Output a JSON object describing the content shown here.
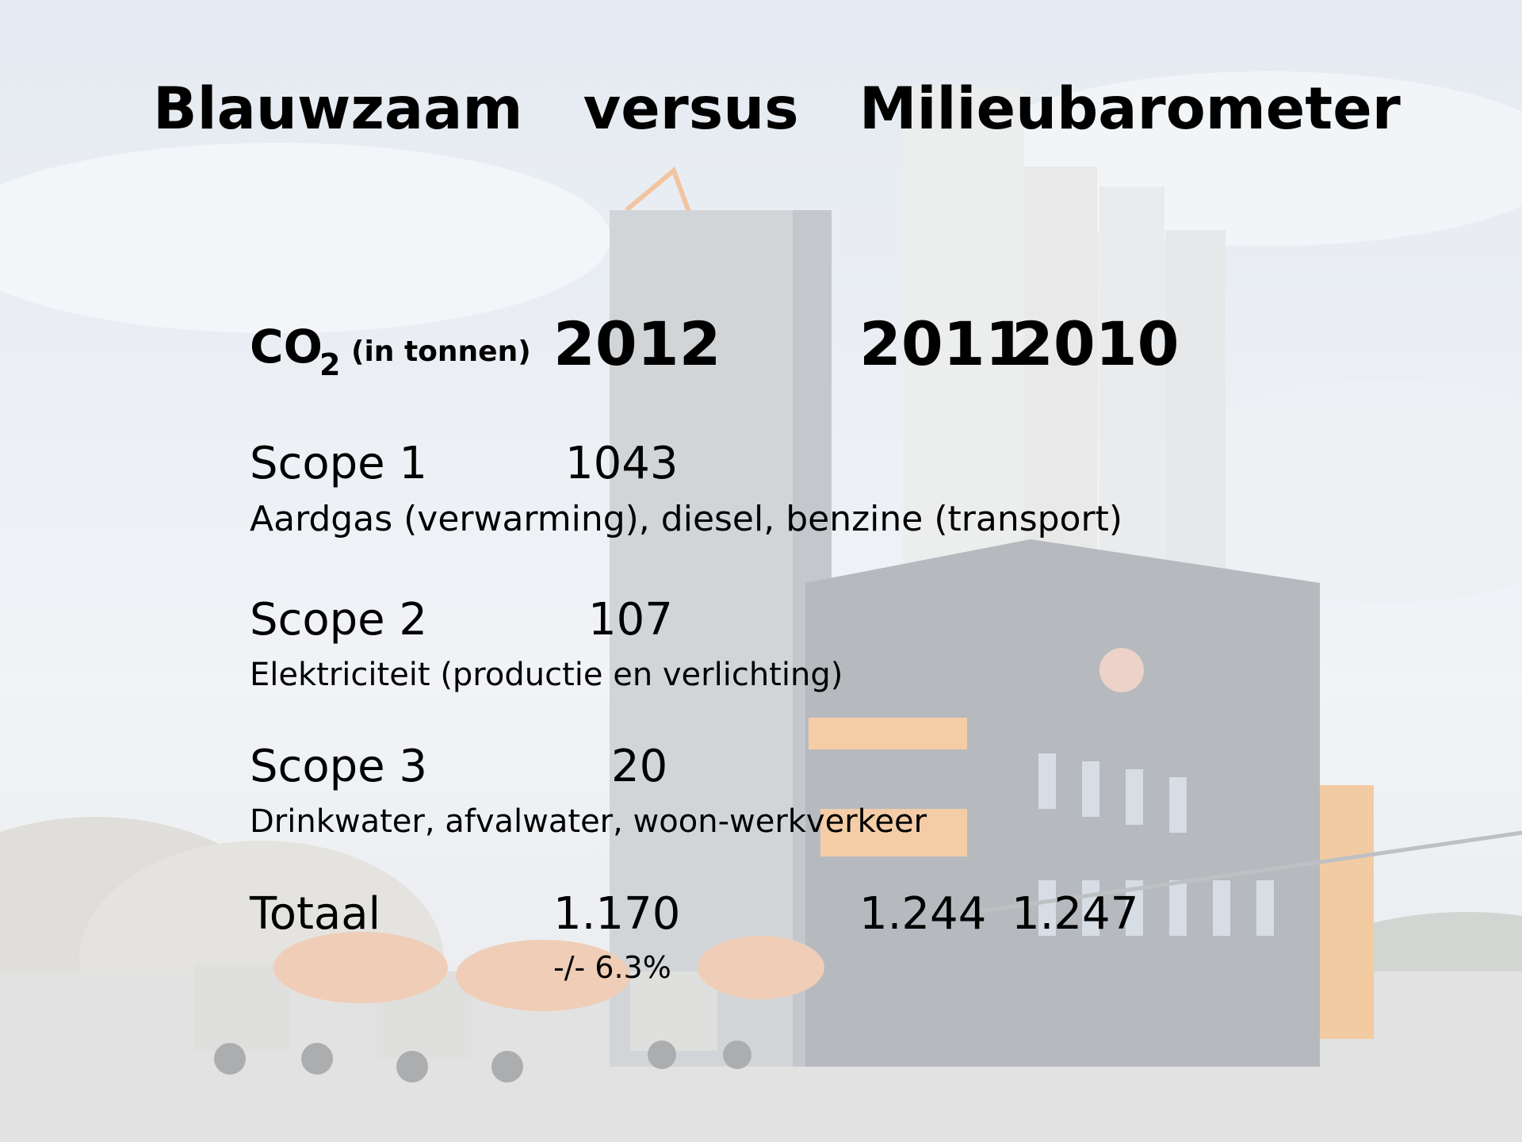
{
  "slide": {
    "title": "Blauwzaam   versus   Milieubarometer",
    "header": {
      "co": "CO",
      "subscript": "2",
      "unit": "(in tonnen)",
      "year_1": "2012",
      "year_2": "2011",
      "year_3": "2010"
    },
    "rows": [
      {
        "label": "Scope 1",
        "value": "1043",
        "description": "Aardgas (verwarming), diesel, benzine (transport)"
      },
      {
        "label": "Scope 2",
        "value": "107",
        "description": "Elektriciteit (productie en verlichting)"
      },
      {
        "label": "Scope 3",
        "value": "20",
        "description": "Drinkwater, afvalwater, woon-werkverkeer"
      }
    ],
    "total": {
      "label": "Totaal",
      "value_1": "1.170",
      "value_2": "1.244",
      "value_3": "1.247",
      "note": "-/- 6.3%"
    }
  }
}
